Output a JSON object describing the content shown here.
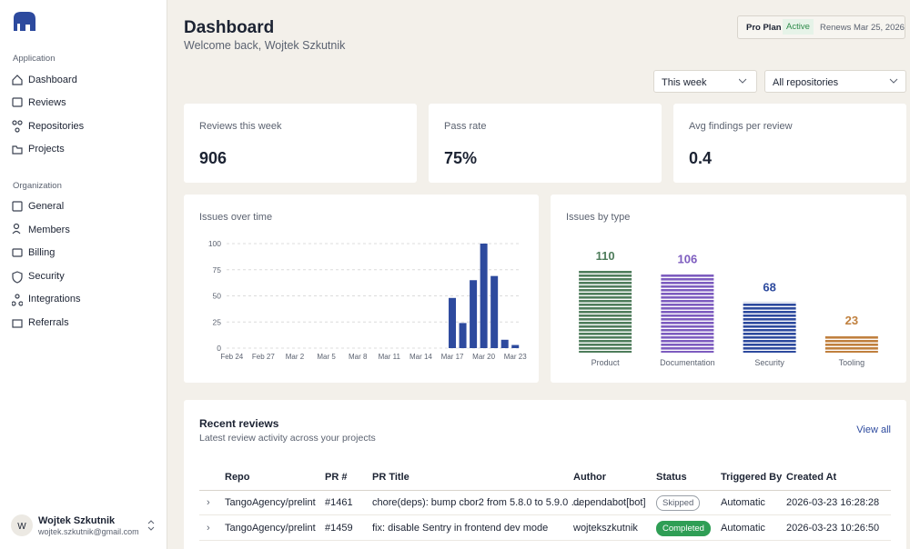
{
  "sidebar": {
    "sections": [
      {
        "title": "Application",
        "items": [
          "Dashboard",
          "Reviews",
          "Repositories",
          "Projects"
        ]
      },
      {
        "title": "Organization",
        "items": [
          "General",
          "Members",
          "Billing",
          "Security",
          "Integrations",
          "Referrals"
        ]
      }
    ],
    "user": {
      "initial": "W",
      "name": "Wojtek Szkutnik",
      "email": "wojtek.szkutnik@gmail.com"
    }
  },
  "header": {
    "title": "Dashboard",
    "subtitle": "Welcome back, Wojtek Szkutnik",
    "plan": "Pro Plan",
    "plan_status": "Active",
    "renews": "Renews Mar 25, 2026"
  },
  "filters": [
    "This week",
    "All repositories"
  ],
  "stats": [
    {
      "label": "Reviews this week",
      "value": "906"
    },
    {
      "label": "Pass rate",
      "value": "75%"
    },
    {
      "label": "Avg findings per review",
      "value": "0.4"
    }
  ],
  "chart_data": [
    {
      "type": "bar",
      "title": "Issues over time",
      "categories": [
        "Feb 24",
        null,
        null,
        "Feb 27",
        null,
        null,
        "Mar 2",
        null,
        null,
        "Mar 5",
        null,
        null,
        "Mar 8",
        null,
        null,
        "Mar 11",
        null,
        null,
        "Mar 14",
        null,
        null,
        "Mar 17",
        null,
        null,
        "Mar 20",
        null,
        null,
        "Mar 23"
      ],
      "values": [
        0,
        0,
        0,
        0,
        0,
        0,
        0,
        0,
        0,
        0,
        0,
        0,
        0,
        0,
        0,
        0,
        0,
        0,
        0,
        0,
        0,
        48,
        24,
        65,
        100,
        69,
        8,
        3
      ],
      "color": "#2d4a9e",
      "ylim": [
        0,
        100
      ],
      "yticks": [
        0,
        25,
        50,
        75,
        100
      ],
      "grid": true
    },
    {
      "type": "bar",
      "title": "Issues by type",
      "categories": [
        "Product",
        "Documentation",
        "Security",
        "Tooling"
      ],
      "values": [
        110,
        106,
        68,
        23
      ],
      "colors": [
        "#4f7d5c",
        "#7d5cbf",
        "#2d4a9e",
        "#c0803e"
      ],
      "pattern": "striped",
      "data_labels": true
    }
  ],
  "recent": {
    "title": "Recent reviews",
    "subtitle": "Latest review activity across your projects",
    "view_all": "View all",
    "columns": [
      "Repo",
      "PR #",
      "PR Title",
      "Author",
      "Status",
      "Triggered By",
      "Created At"
    ],
    "rows": [
      [
        "TangoAgency/prelint",
        "#1461",
        "chore(deps): bump cbor2 from 5.8.0 to 5.9.0 …",
        "dependabot[bot]",
        "Skipped",
        "Automatic",
        "2026-03-23 16:28:28"
      ],
      [
        "TangoAgency/prelint",
        "#1459",
        "fix: disable Sentry in frontend dev mode",
        "wojtekszkutnik",
        "Completed",
        "Automatic",
        "2026-03-23 10:26:50"
      ]
    ]
  }
}
